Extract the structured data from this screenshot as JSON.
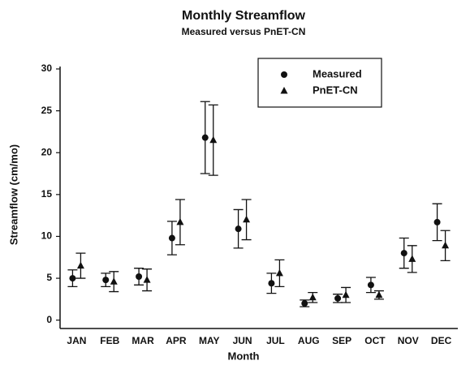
{
  "chart_data": {
    "type": "errorbar-scatter",
    "title": "Monthly Streamflow",
    "subtitle": "Measured versus PnET-CN",
    "x_label": "Month",
    "y_label": "Streamflow (cm/mo)",
    "categories": [
      "JAN",
      "FEB",
      "MAR",
      "APR",
      "MAY",
      "JUN",
      "JUL",
      "AUG",
      "SEP",
      "OCT",
      "NOV",
      "DEC"
    ],
    "series": [
      {
        "name": "Measured",
        "marker": "circle",
        "color": "#111111",
        "values": [
          5.0,
          4.8,
          5.2,
          9.8,
          21.8,
          10.9,
          4.4,
          2.0,
          2.6,
          4.2,
          8.0,
          11.7
        ],
        "errors": [
          1.0,
          0.8,
          1.0,
          2.0,
          4.3,
          2.3,
          1.2,
          0.4,
          0.5,
          0.9,
          1.8,
          2.2
        ]
      },
      {
        "name": "PnET-CN",
        "marker": "triangle",
        "color": "#111111",
        "values": [
          6.5,
          4.6,
          4.8,
          11.7,
          21.5,
          12.0,
          5.6,
          2.7,
          3.0,
          3.0,
          7.3,
          8.9
        ],
        "errors": [
          1.5,
          1.2,
          1.3,
          2.7,
          4.2,
          2.4,
          1.6,
          0.6,
          0.9,
          0.5,
          1.6,
          1.8
        ]
      }
    ],
    "ylim": [
      -1,
      30
    ],
    "yticks": [
      0,
      5,
      10,
      15,
      20,
      25,
      30
    ],
    "legend": "upper right"
  }
}
